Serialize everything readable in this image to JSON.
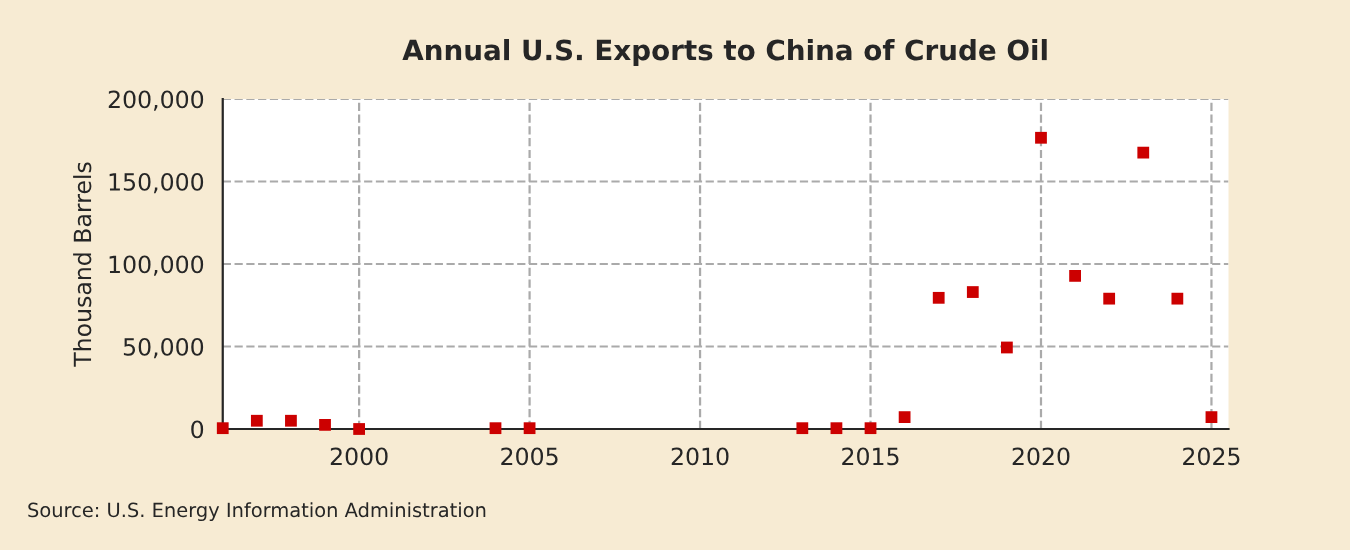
{
  "chart_data": {
    "type": "scatter",
    "title": "Annual U.S. Exports to China of Crude Oil",
    "ylabel": "Thousand Barrels",
    "x": [
      1996,
      1997,
      1998,
      1999,
      2000,
      2004,
      2005,
      2013,
      2014,
      2015,
      2016,
      2017,
      2018,
      2019,
      2020,
      2021,
      2022,
      2023,
      2024,
      2025
    ],
    "series": [
      {
        "color": "#cc0000",
        "values": [
          500,
          5000,
          5000,
          2500,
          0,
          500,
          500,
          500,
          500,
          500,
          7200,
          79500,
          83000,
          49400,
          176500,
          92800,
          79000,
          167500,
          79000,
          7200
        ]
      }
    ],
    "xlim": [
      1996,
      2025.5
    ],
    "xticks": [
      2000,
      2005,
      2010,
      2015,
      2020,
      2025
    ],
    "ylim": [
      0,
      200000
    ],
    "yticks": [
      {
        "value": 0,
        "label": "0"
      },
      {
        "value": 50000,
        "label": "50,000"
      },
      {
        "value": 100000,
        "label": "100,000"
      },
      {
        "value": 150000,
        "label": "150,000"
      },
      {
        "value": 200000,
        "label": "200,000"
      }
    ],
    "grid": true,
    "marker": "square",
    "annotations": [
      "Source: U.S. Energy Information Administration"
    ]
  }
}
